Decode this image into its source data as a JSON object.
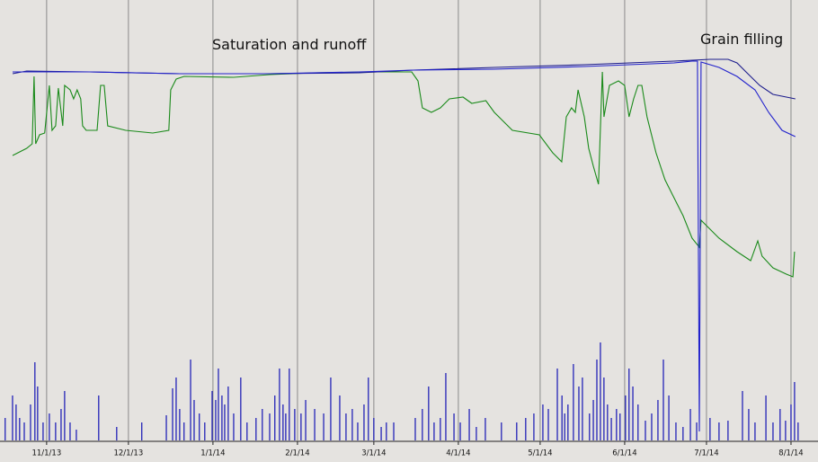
{
  "chart_data": [
    {
      "type": "line",
      "annotations": [
        "Saturation and runoff",
        "Grain filling"
      ],
      "xlim": [
        -17.1,
        282.9
      ],
      "ylim": [
        0,
        490
      ],
      "xticks": [
        {
          "value": 0,
          "label": "11/1/13"
        },
        {
          "value": 30,
          "label": "12/1/13"
        },
        {
          "value": 61,
          "label": "1/1/14"
        },
        {
          "value": 92,
          "label": "2/1/14"
        },
        {
          "value": 120,
          "label": "3/1/14"
        },
        {
          "value": 151,
          "label": "4/1/14"
        },
        {
          "value": 181,
          "label": "5/1/14"
        },
        {
          "value": 212,
          "label": "6/1/14"
        },
        {
          "value": 242,
          "label": "7/1/14"
        },
        {
          "value": 273,
          "label": "8/1/14"
        }
      ],
      "grid": true,
      "series": [
        {
          "color": "#1a8a1a",
          "x": [
            -12.5,
            -7.3,
            -5.3,
            -4.6,
            -4,
            -2.6,
            -0.7,
            1,
            2,
            3.3,
            4.3,
            5.9,
            6.6,
            8.6,
            9.9,
            11.2,
            12.5,
            13.2,
            14.5,
            18.5,
            19.8,
            21.1,
            22.4,
            29,
            38.9,
            44.8,
            45.5,
            47.5,
            50.4,
            68.6,
            81.8,
            98.3,
            121.3,
            133.9,
            136.2,
            137.8,
            141.1,
            144.4,
            147.7,
            152.7,
            155.9,
            161.1,
            164.2,
            170.8,
            180.7,
            185.6,
            188.9,
            190.6,
            192.5,
            193.9,
            194.9,
            197.2,
            198.8,
            200.5,
            202.4,
            203.8,
            204.4,
            206.4,
            209.7,
            212,
            213.6,
            215.3,
            216.9,
            218.3,
            220.2,
            223.5,
            226.8,
            230.1,
            233.4,
            236.7,
            239.4,
            240,
            243.3,
            246.6,
            253.2,
            258.2,
            260.8,
            262.4,
            266.4,
            271.3,
            273.7,
            274.3
          ],
          "values": [
            317,
            325,
            330,
            405,
            330,
            340,
            342,
            395,
            345,
            350,
            392,
            350,
            395,
            390,
            380,
            390,
            380,
            350,
            345,
            345,
            395,
            395,
            350,
            345,
            342,
            345,
            390,
            402,
            405,
            404,
            407,
            409,
            410,
            410,
            400,
            370,
            365,
            370,
            380,
            382,
            375,
            378,
            365,
            345,
            340,
            320,
            310,
            360,
            370,
            365,
            390,
            360,
            325,
            305,
            285,
            410,
            360,
            395,
            400,
            395,
            360,
            380,
            395,
            395,
            360,
            320,
            290,
            270,
            250,
            225,
            215,
            245,
            235,
            225,
            210,
            200,
            222,
            205,
            192,
            185,
            182,
            210
          ]
        },
        {
          "color": "#1c1c8c",
          "x": [
            -12.5,
            -7.3,
            15.8,
            48.8,
            81.8,
            114.7,
            134.5,
            164.2,
            197.2,
            230.1,
            243.3,
            249.9,
            253.2,
            256.5,
            261.5,
            266.4,
            274.6
          ],
          "values": [
            408,
            411,
            410,
            408,
            408,
            409,
            412,
            415,
            418,
            422,
            424,
            424,
            420,
            410,
            395,
            385,
            380
          ]
        },
        {
          "color": "#2222cc",
          "x": [
            -12.5,
            15.8,
            48.8,
            81.8,
            114.7,
            134.5,
            164.2,
            197.2,
            230.1,
            236.7,
            238.7,
            239.4,
            240,
            246.6,
            253.2,
            259.8,
            264.8,
            269.7,
            274.6
          ],
          "values": [
            410,
            410,
            408,
            408,
            410,
            412,
            413,
            416,
            420,
            422,
            422,
            10,
            421,
            415,
            405,
            390,
            365,
            345,
            338
          ]
        }
      ]
    },
    {
      "type": "bar",
      "color": "#1414b4",
      "xlim": [
        -17.1,
        282.9
      ],
      "ylim": [
        0,
        110
      ],
      "x": [
        -15.2,
        -12.5,
        -11.2,
        -9.9,
        -8.2,
        -5.9,
        -4.3,
        -3.3,
        -1.3,
        1,
        3.3,
        5.3,
        6.6,
        8.6,
        10.9,
        19.1,
        25.7,
        34.9,
        43.9,
        46.2,
        47.5,
        48.8,
        50.4,
        52.8,
        54.1,
        56,
        58,
        60.7,
        62,
        63,
        64.3,
        65.3,
        66.6,
        68.6,
        71.2,
        73.5,
        76.8,
        79.1,
        81.8,
        83.7,
        85.4,
        86.7,
        87.7,
        89,
        91,
        93.3,
        95,
        98.3,
        101.6,
        104.2,
        107.5,
        109.8,
        112.1,
        114.1,
        116.4,
        118,
        120,
        122.7,
        124.6,
        127.3,
        135.2,
        137.8,
        140.1,
        142.1,
        144.4,
        146.4,
        149.4,
        151.7,
        155,
        157.6,
        160.9,
        166.8,
        172.4,
        175.7,
        178.7,
        182,
        184,
        187.3,
        189,
        190,
        191.2,
        193.2,
        195.2,
        196.5,
        199.1,
        200.5,
        201.8,
        203.1,
        204.4,
        205.7,
        207.1,
        209,
        210.3,
        212.3,
        213.6,
        215,
        216.9,
        219.6,
        221.9,
        224.2,
        226.2,
        228.2,
        230.8,
        233.4,
        236.1,
        238.4,
        243.3,
        246.6,
        249.9,
        255.2,
        257.5,
        259.8,
        263.8,
        266.4,
        269,
        271,
        273,
        274.3,
        275.6
      ],
      "values": [
        25,
        50,
        40,
        25,
        20,
        40,
        87,
        60,
        20,
        30,
        20,
        35,
        55,
        20,
        12,
        50,
        15,
        20,
        28,
        58,
        70,
        35,
        20,
        90,
        45,
        30,
        20,
        55,
        45,
        80,
        50,
        40,
        60,
        30,
        70,
        20,
        25,
        35,
        30,
        50,
        80,
        40,
        30,
        80,
        35,
        30,
        45,
        35,
        30,
        70,
        50,
        30,
        35,
        20,
        40,
        70,
        25,
        15,
        20,
        20,
        25,
        35,
        60,
        20,
        25,
        75,
        30,
        20,
        35,
        15,
        25,
        20,
        20,
        25,
        30,
        40,
        35,
        80,
        50,
        30,
        40,
        85,
        60,
        70,
        30,
        45,
        90,
        109,
        70,
        40,
        25,
        35,
        30,
        50,
        80,
        60,
        40,
        22,
        30,
        45,
        90,
        50,
        20,
        15,
        35,
        20,
        25,
        20,
        22,
        55,
        35,
        20,
        50,
        20,
        35,
        22,
        40,
        65,
        20
      ]
    }
  ]
}
